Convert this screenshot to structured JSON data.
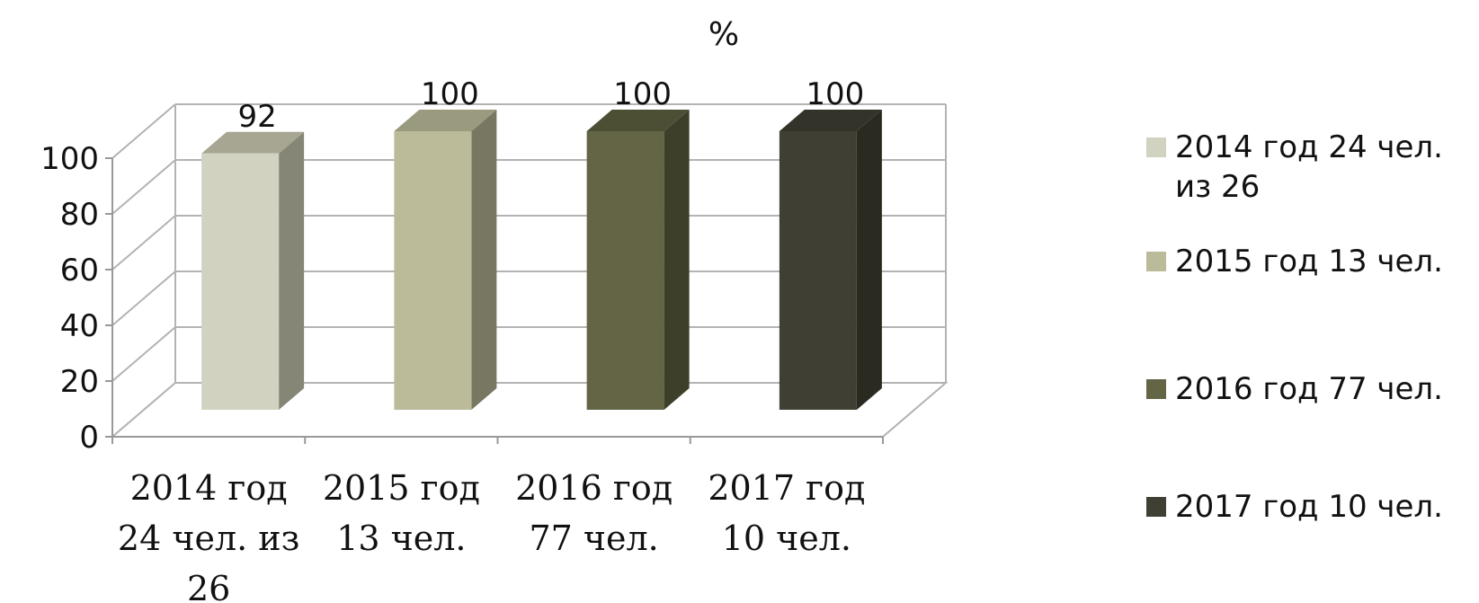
{
  "chart_data": {
    "type": "bar",
    "title": "%",
    "categories": [
      [
        "2014 год",
        "24 чел. из",
        "26"
      ],
      [
        "2015 год",
        "13 чел."
      ],
      [
        "2016 год",
        "77 чел."
      ],
      [
        "2017 год",
        "10 чел."
      ]
    ],
    "values": [
      92,
      100,
      100,
      100
    ],
    "data_labels": [
      "92",
      "100",
      "100",
      "100"
    ],
    "ylim": [
      0,
      100
    ],
    "yticks": [
      "0",
      "20",
      "40",
      "60",
      "80",
      "100"
    ],
    "grid": true,
    "style": "3d",
    "legend": {
      "placement": "right",
      "entries": [
        "2014 год 24 чел. из 26",
        "2015 год 13 чел.",
        "2016 год 77 чел.",
        "2017 год  10 чел."
      ]
    },
    "colors": {
      "fronts": [
        "#d1d2c0",
        "#bbba99",
        "#636545",
        "#3f3f33"
      ],
      "sides": [
        "#868677",
        "#787761",
        "#3e3f2b",
        "#2a2a21"
      ],
      "tops": [
        "#a6a692",
        "#9a9a7e",
        "#4d4f35",
        "#333329"
      ]
    }
  }
}
